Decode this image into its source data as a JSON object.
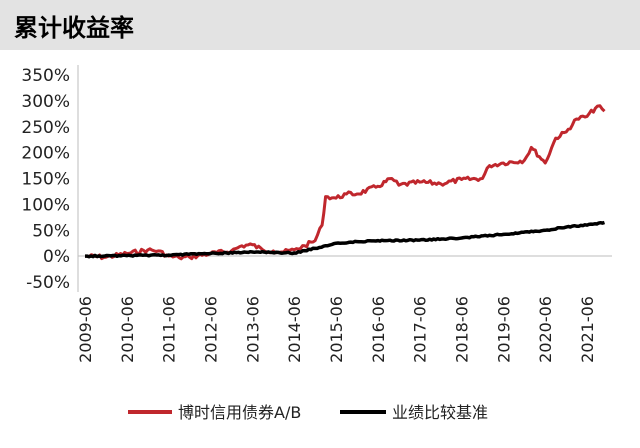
{
  "header": {
    "title": "累计收益率"
  },
  "chart_data": {
    "type": "line",
    "title": "累计收益率",
    "x_ticks": [
      "2009-06",
      "2010-06",
      "2011-06",
      "2012-06",
      "2013-06",
      "2014-06",
      "2015-06",
      "2016-06",
      "2017-06",
      "2018-06",
      "2019-06",
      "2020-06",
      "2021-06"
    ],
    "y_ticks": [
      "350%",
      "300%",
      "250%",
      "200%",
      "150%",
      "100%",
      "50%",
      "0%",
      "-50%"
    ],
    "ylim": [
      -50,
      350
    ],
    "xlim": [
      "2009-06",
      "2021-12"
    ],
    "grid": false,
    "legend_position": "bottom",
    "series": [
      {
        "name": "博时信用债券A/B",
        "color": "#c0272d",
        "points": [
          [
            "2009-06",
            0
          ],
          [
            "2009-12",
            -2
          ],
          [
            "2010-06",
            5
          ],
          [
            "2010-12",
            12
          ],
          [
            "2011-03",
            10
          ],
          [
            "2011-06",
            0
          ],
          [
            "2011-09",
            -3
          ],
          [
            "2011-12",
            -2
          ],
          [
            "2012-06",
            5
          ],
          [
            "2012-12",
            10
          ],
          [
            "2013-03",
            20
          ],
          [
            "2013-06",
            22
          ],
          [
            "2013-09",
            12
          ],
          [
            "2013-12",
            10
          ],
          [
            "2014-03",
            8
          ],
          [
            "2014-06",
            12
          ],
          [
            "2014-09",
            20
          ],
          [
            "2014-12",
            30
          ],
          [
            "2015-02",
            60
          ],
          [
            "2015-03",
            115
          ],
          [
            "2015-06",
            112
          ],
          [
            "2015-09",
            120
          ],
          [
            "2015-12",
            120
          ],
          [
            "2016-06",
            135
          ],
          [
            "2016-10",
            150
          ],
          [
            "2016-12",
            137
          ],
          [
            "2017-06",
            143
          ],
          [
            "2017-12",
            140
          ],
          [
            "2018-06",
            148
          ],
          [
            "2018-12",
            150
          ],
          [
            "2019-02",
            175
          ],
          [
            "2019-06",
            180
          ],
          [
            "2019-12",
            185
          ],
          [
            "2020-02",
            210
          ],
          [
            "2020-06",
            180
          ],
          [
            "2020-09",
            228
          ],
          [
            "2020-12",
            240
          ],
          [
            "2021-03",
            265
          ],
          [
            "2021-06",
            270
          ],
          [
            "2021-09",
            290
          ],
          [
            "2021-11",
            280
          ]
        ]
      },
      {
        "name": "业绩比较基准",
        "color": "#000000",
        "points": [
          [
            "2009-06",
            0
          ],
          [
            "2010-06",
            1
          ],
          [
            "2011-06",
            2
          ],
          [
            "2012-06",
            5
          ],
          [
            "2013-06",
            8
          ],
          [
            "2014-06",
            6
          ],
          [
            "2014-12",
            15
          ],
          [
            "2015-06",
            25
          ],
          [
            "2015-12",
            28
          ],
          [
            "2016-06",
            30
          ],
          [
            "2017-06",
            31
          ],
          [
            "2018-06",
            35
          ],
          [
            "2019-06",
            42
          ],
          [
            "2020-06",
            50
          ],
          [
            "2020-12",
            56
          ],
          [
            "2021-06",
            60
          ],
          [
            "2021-11",
            65
          ]
        ]
      }
    ]
  }
}
